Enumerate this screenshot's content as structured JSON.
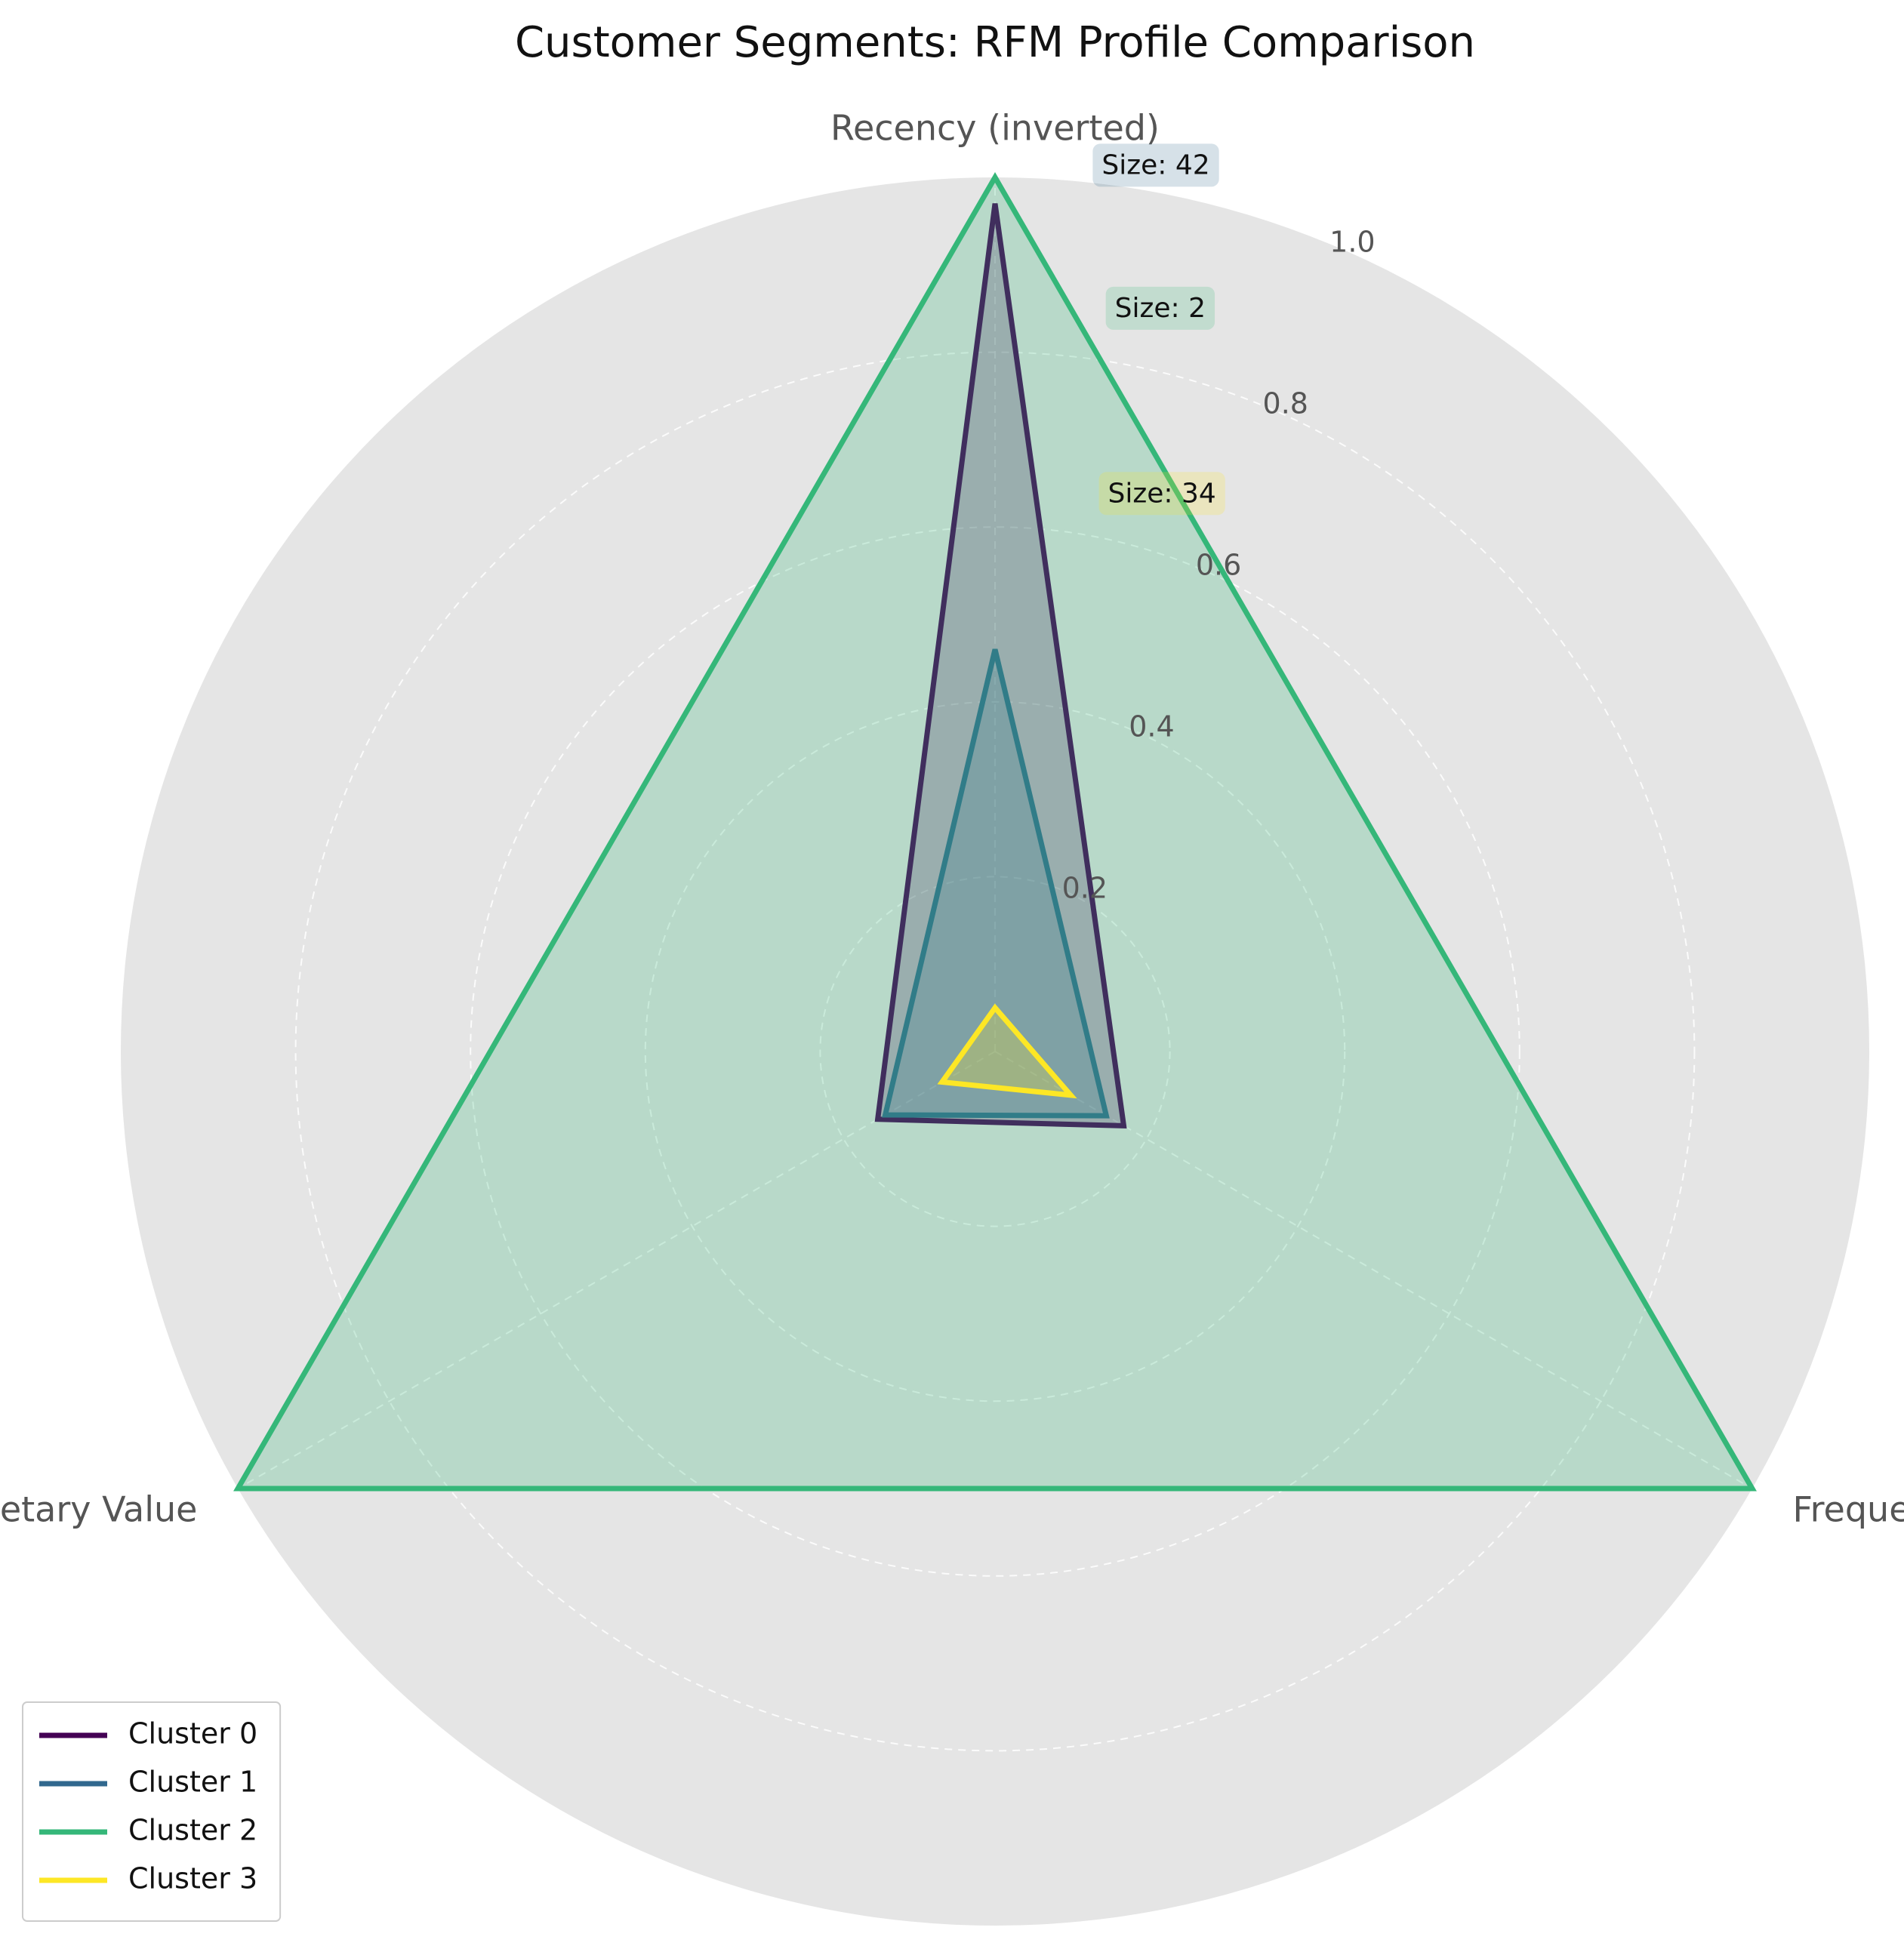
{
  "chart_data": {
    "type": "radar",
    "title": "Customer Segments: RFM Profile Comparison",
    "axes": [
      "Recency (inverted)",
      "Frequency",
      "Monetary Value"
    ],
    "rlim": [
      0,
      1.0
    ],
    "rticks": [
      0.2,
      0.4,
      0.6,
      0.8,
      1.0
    ],
    "rtick_labels": [
      "0.2",
      "0.4",
      "0.6",
      "0.8",
      "1.0"
    ],
    "grid": true,
    "legend_position": "lower-left",
    "series": [
      {
        "name": "Cluster 0",
        "values": [
          0.97,
          0.17,
          0.155
        ],
        "color": "#440154",
        "size_label": "Size: 42"
      },
      {
        "name": "Cluster 1",
        "values": [
          0.46,
          0.147,
          0.145
        ],
        "color": "#31688e",
        "size_label": "Size: 2"
      },
      {
        "name": "Cluster 2",
        "values": [
          1.0,
          1.0,
          1.0
        ],
        "color": "#35b779",
        "size_label": "Size: 34"
      },
      {
        "name": "Cluster 3",
        "values": [
          0.05,
          0.1,
          0.07
        ],
        "color": "#fde725",
        "size_label": ""
      }
    ],
    "annotations": [
      {
        "text": "Size: 42",
        "box_color": "#31688e"
      },
      {
        "text": "Size: 2",
        "box_color": "#35b779"
      },
      {
        "text": "Size: 34",
        "box_color": "#fde725"
      }
    ]
  }
}
